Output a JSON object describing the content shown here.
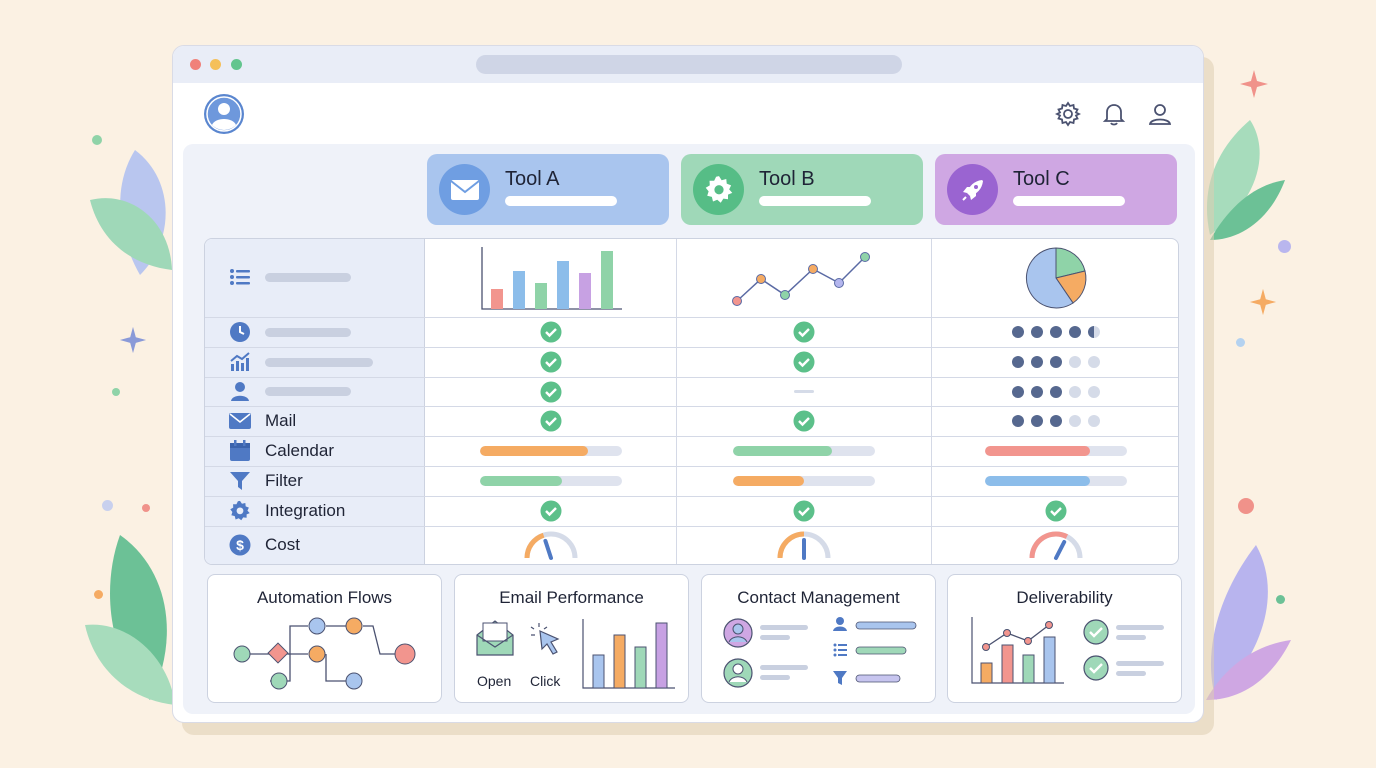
{
  "colors": {
    "background": "#fbf1e3",
    "tool_a": "#a9c5ee",
    "tool_b": "#9fd8b8",
    "tool_c": "#cfa7e3",
    "check": "#5cc08a",
    "dot_on": "#56688f",
    "dot_off": "#d5dbe8",
    "orange": "#f5ab63",
    "green": "#8fd3a8",
    "red": "#f2958e",
    "blue": "#8cbdea"
  },
  "header": {
    "icons": [
      "avatar-icon",
      "gear-icon",
      "bell-icon",
      "user-icon"
    ]
  },
  "tools": [
    {
      "name": "Tool A",
      "icon": "mail-icon"
    },
    {
      "name": "Tool B",
      "icon": "gear-icon"
    },
    {
      "name": "Tool C",
      "icon": "rocket-icon"
    }
  ],
  "table": {
    "rows": [
      {
        "icon": "list-icon",
        "label": ""
      },
      {
        "icon": "clock-icon",
        "label": ""
      },
      {
        "icon": "chart-icon",
        "label": ""
      },
      {
        "icon": "user-icon",
        "label": ""
      },
      {
        "icon": "mail-icon",
        "label": "Mail"
      },
      {
        "icon": "calendar-icon",
        "label": "Calendar"
      },
      {
        "icon": "filter-icon",
        "label": "Filter"
      },
      {
        "icon": "gear-icon",
        "label": "Integration"
      },
      {
        "icon": "dollar-icon",
        "label": "Cost"
      }
    ],
    "dot_ratings": [
      4.5,
      3,
      3,
      3
    ],
    "bars": {
      "calendar": [
        0.76,
        0.7,
        0.74
      ],
      "filter": [
        0.58,
        0.5,
        0.74
      ]
    },
    "gauges": [
      0.4,
      0.5,
      0.65
    ]
  },
  "widgets": [
    {
      "title": "Automation Flows"
    },
    {
      "title": "Email Performance",
      "open_label": "Open",
      "click_label": "Click"
    },
    {
      "title": "Contact Management"
    },
    {
      "title": "Deliverability"
    }
  ]
}
